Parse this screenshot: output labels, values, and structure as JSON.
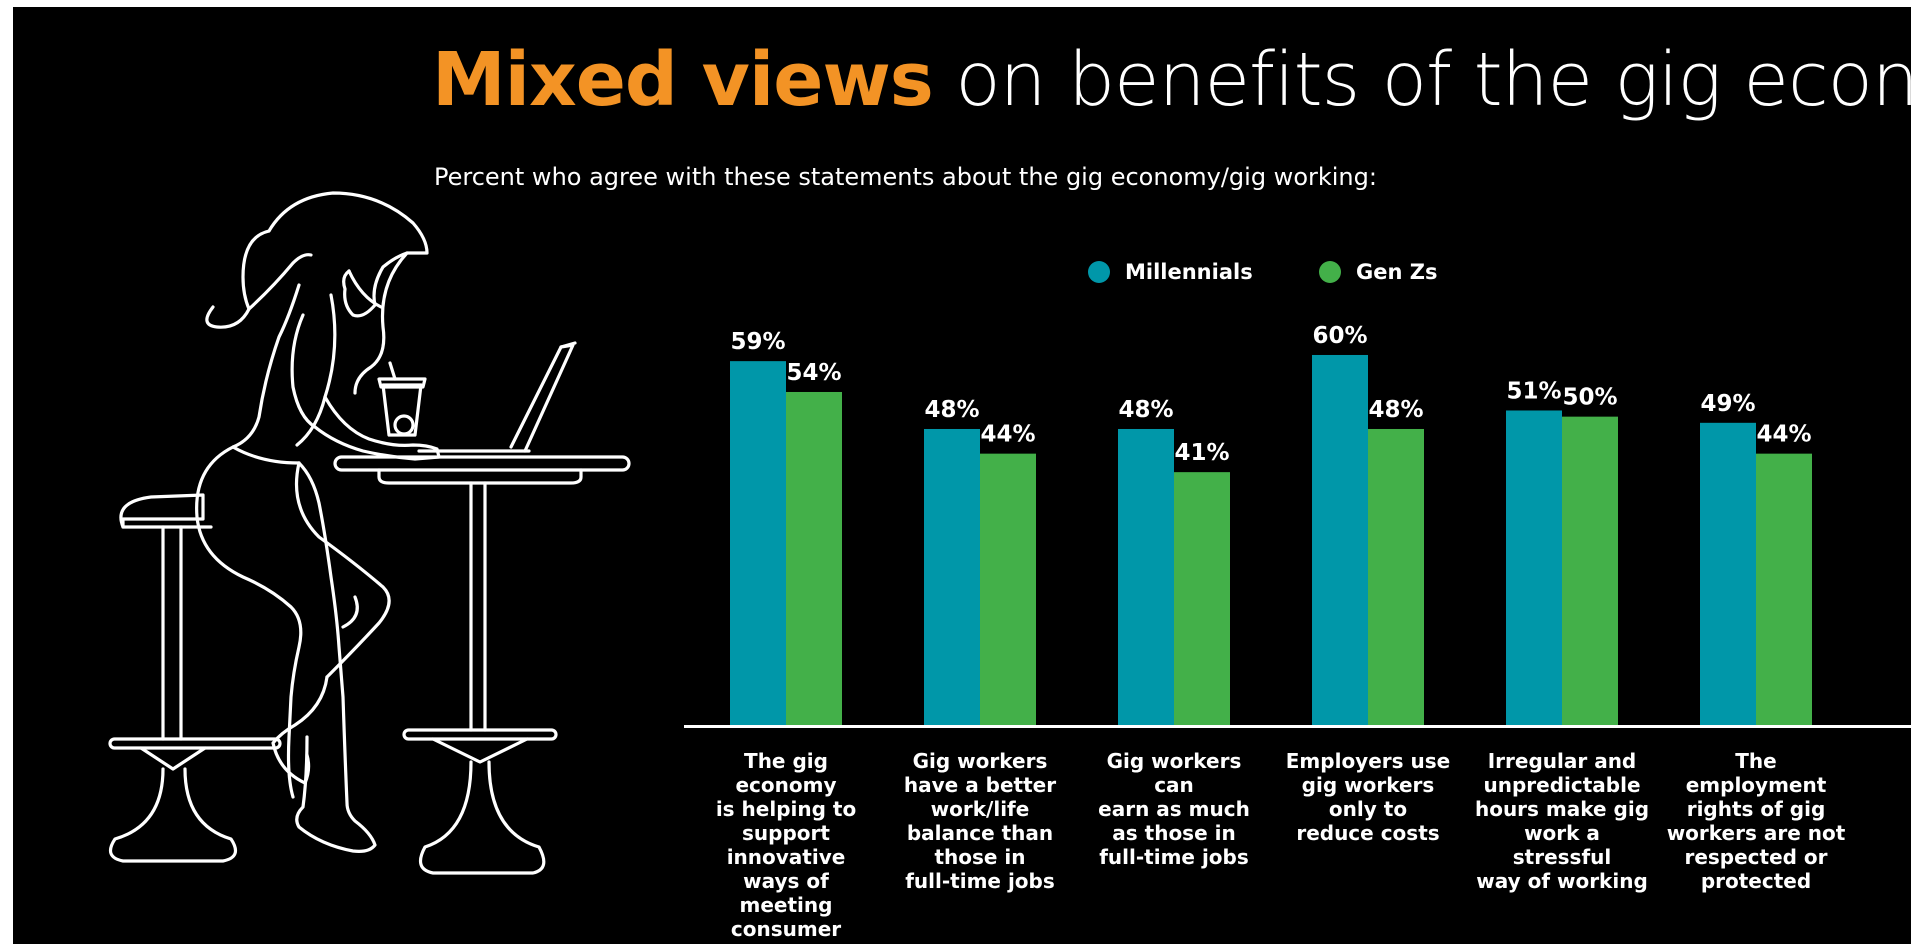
{
  "title": {
    "highlight": "Mixed views",
    "rest": "on benefits of the gig economy"
  },
  "subtitle": "Percent who agree with these statements about the gig economy/gig working:",
  "colors": {
    "background": "#000000",
    "accent": "#f39325",
    "millennials": "#0097a9",
    "genz": "#43b049",
    "text": "#ffffff"
  },
  "legend": [
    {
      "label": "Millennials",
      "color": "#0097a9"
    },
    {
      "label": "Gen Zs",
      "color": "#43b049"
    }
  ],
  "illustration": {
    "icon": "woman-at-cafe-table-with-laptop-icon"
  },
  "chart_data": {
    "type": "bar",
    "ylim": [
      0,
      100
    ],
    "grid": false,
    "legend_position": "top-center",
    "value_suffix": "%",
    "categories": [
      [
        "The gig economy",
        "is helping to",
        "support innovative",
        "ways of meeting",
        "consumer needs"
      ],
      [
        "Gig workers",
        "have a better",
        "work/life",
        "balance than",
        "those in",
        "full-time jobs"
      ],
      [
        "Gig workers can",
        "earn as much",
        "as those in",
        "full-time jobs"
      ],
      [
        "Employers use",
        "gig workers",
        "only to",
        "reduce costs"
      ],
      [
        "Irregular and",
        "unpredictable",
        "hours make gig",
        "work a stressful",
        "way of working"
      ],
      [
        "The employment",
        "rights of gig",
        "workers are not",
        "respected or",
        "protected"
      ]
    ],
    "series": [
      {
        "name": "Millennials",
        "color": "#0097a9",
        "values": [
          59,
          48,
          48,
          60,
          51,
          49
        ]
      },
      {
        "name": "Gen Zs",
        "color": "#43b049",
        "values": [
          54,
          44,
          41,
          48,
          50,
          44
        ]
      }
    ]
  }
}
